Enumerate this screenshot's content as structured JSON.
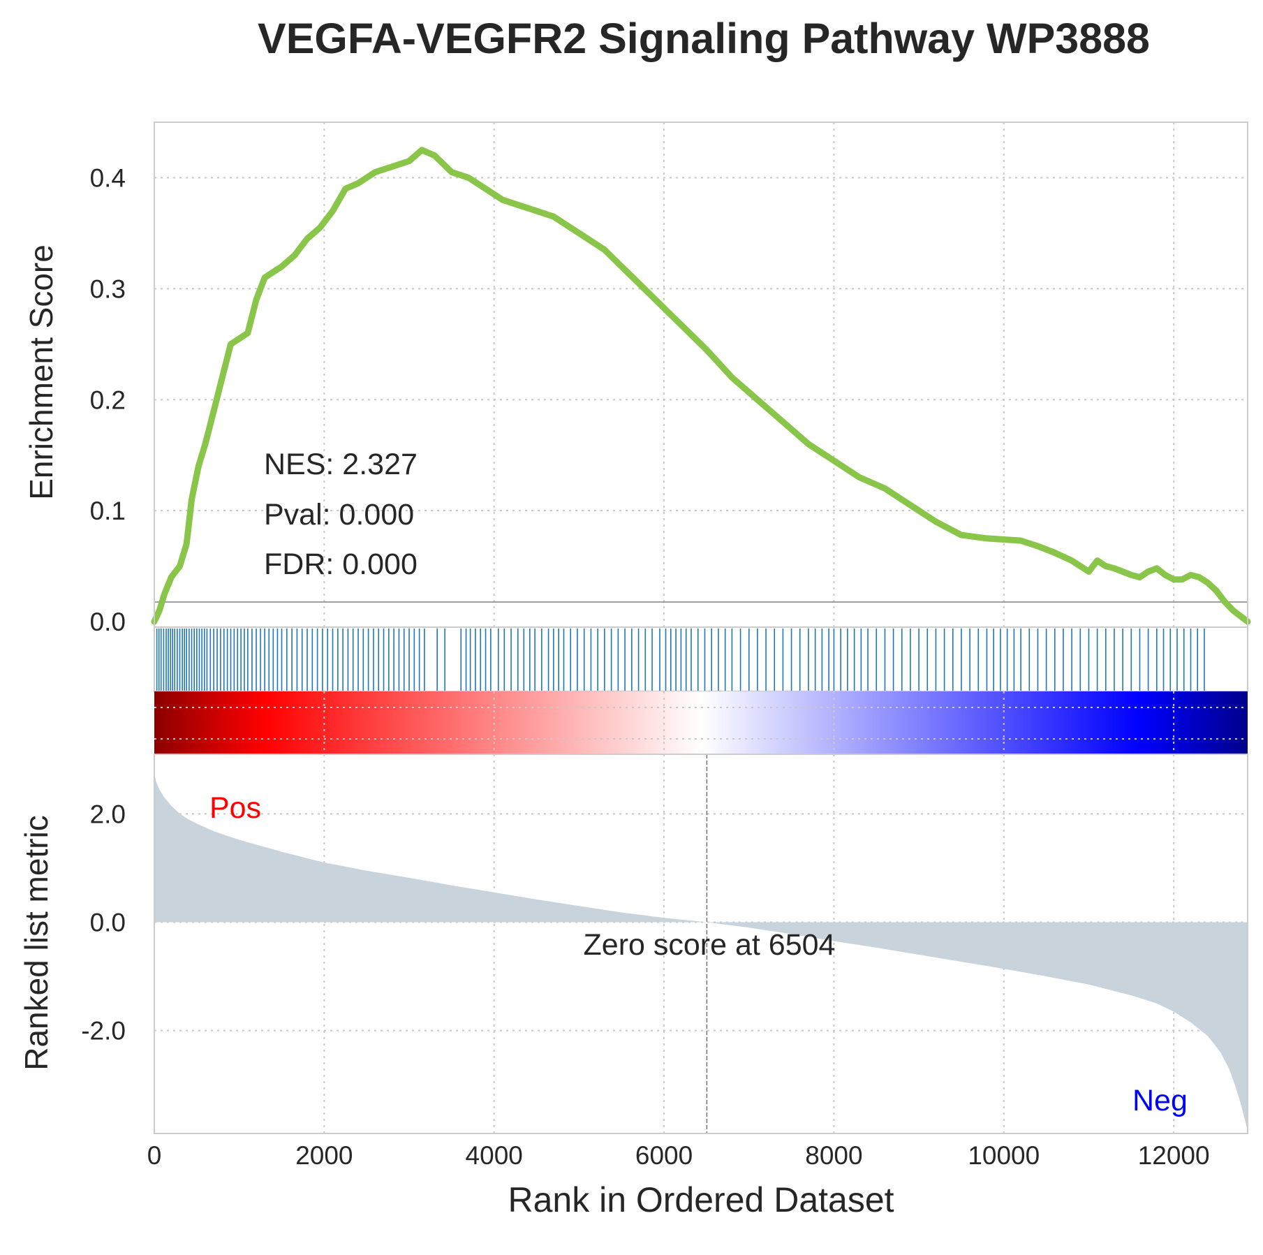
{
  "chart_data": {
    "type": "line",
    "title": "VEGFA-VEGFR2 Signaling Pathway WP3888",
    "xlabel": "Rank in Ordered Dataset",
    "xlim": [
      0,
      12870
    ],
    "x_ticks": [
      0,
      2000,
      4000,
      6000,
      8000,
      10000,
      12000
    ],
    "x_tick_labels": [
      "0",
      "2000",
      "4000",
      "6000",
      "8000",
      "10000",
      "12000"
    ],
    "grid": true,
    "es_panel": {
      "ylabel": "Enrichment Score",
      "ylim": [
        -0.005,
        0.45
      ],
      "y_ticks": [
        0.0,
        0.1,
        0.2,
        0.3,
        0.4
      ],
      "y_tick_labels": [
        "0.0",
        "0.1",
        "0.2",
        "0.3",
        "0.4"
      ],
      "line_color": "#88c548",
      "series": [
        {
          "x": [
            0,
            60,
            120,
            200,
            300,
            380,
            440,
            520,
            600,
            700,
            800,
            900,
            1000,
            1100,
            1200,
            1300,
            1400,
            1500,
            1650,
            1800,
            1950,
            2100,
            2250,
            2400,
            2600,
            2800,
            3000,
            3150,
            3300,
            3500,
            3700,
            3900,
            4100,
            4300,
            4500,
            4700,
            4900,
            5100,
            5300,
            5500,
            5700,
            5900,
            6100,
            6300,
            6500,
            6800,
            7100,
            7400,
            7700,
            8000,
            8300,
            8600,
            8900,
            9200,
            9500,
            9800,
            10000,
            10200,
            10400,
            10600,
            10800,
            11000,
            11100,
            11200,
            11300,
            11400,
            11500,
            11600,
            11700,
            11800,
            11900,
            12000,
            12100,
            12200,
            12300,
            12400,
            12500,
            12600,
            12700,
            12870
          ],
          "es": [
            0.0,
            0.01,
            0.025,
            0.04,
            0.05,
            0.07,
            0.11,
            0.14,
            0.16,
            0.19,
            0.22,
            0.25,
            0.255,
            0.26,
            0.29,
            0.31,
            0.315,
            0.32,
            0.33,
            0.345,
            0.355,
            0.37,
            0.39,
            0.395,
            0.405,
            0.41,
            0.415,
            0.425,
            0.42,
            0.405,
            0.4,
            0.39,
            0.38,
            0.375,
            0.37,
            0.365,
            0.355,
            0.345,
            0.335,
            0.32,
            0.305,
            0.29,
            0.275,
            0.26,
            0.245,
            0.22,
            0.2,
            0.18,
            0.16,
            0.145,
            0.13,
            0.12,
            0.105,
            0.09,
            0.078,
            0.075,
            0.074,
            0.073,
            0.068,
            0.062,
            0.055,
            0.045,
            0.055,
            0.05,
            0.048,
            0.045,
            0.042,
            0.04,
            0.045,
            0.048,
            0.042,
            0.038,
            0.038,
            0.042,
            0.04,
            0.035,
            0.028,
            0.018,
            0.01,
            0.0
          ]
        }
      ]
    },
    "hits": [
      30,
      55,
      80,
      110,
      140,
      165,
      190,
      215,
      240,
      270,
      300,
      330,
      355,
      380,
      410,
      440,
      470,
      500,
      530,
      560,
      590,
      620,
      660,
      700,
      740,
      780,
      820,
      860,
      900,
      940,
      980,
      1020,
      1060,
      1100,
      1150,
      1200,
      1250,
      1300,
      1350,
      1400,
      1450,
      1500,
      1560,
      1620,
      1680,
      1740,
      1800,
      1860,
      1920,
      1980,
      2040,
      2100,
      2160,
      2220,
      2280,
      2340,
      2400,
      2460,
      2520,
      2580,
      2640,
      2700,
      2760,
      2820,
      2880,
      2940,
      3000,
      3060,
      3120,
      3180,
      3330,
      3420,
      3610,
      3670,
      3720,
      3780,
      3840,
      3900,
      3960,
      4050,
      4120,
      4200,
      4280,
      4350,
      4420,
      4480,
      4560,
      4640,
      4700,
      4760,
      4820,
      4900,
      4980,
      5060,
      5140,
      5220,
      5300,
      5380,
      5460,
      5540,
      5620,
      5700,
      5780,
      5860,
      5950,
      6020,
      6080,
      6140,
      6200,
      6260,
      6320,
      6400,
      6480,
      6560,
      6640,
      6720,
      6800,
      6900,
      7000,
      7100,
      7200,
      7300,
      7400,
      7500,
      7600,
      7700,
      7780,
      7860,
      7940,
      8000,
      8080,
      8160,
      8240,
      8320,
      8400,
      8500,
      8600,
      8700,
      8800,
      8900,
      9000,
      9100,
      9200,
      9300,
      9400,
      9500,
      9600,
      9700,
      9800,
      9880,
      9960,
      10040,
      10120,
      10200,
      10300,
      10400,
      10500,
      10600,
      10700,
      10800,
      10900,
      11000,
      11100,
      11200,
      11300,
      11400,
      11500,
      11600,
      11700,
      11800,
      11880,
      11960,
      12040,
      12120,
      12200,
      12280,
      12360
    ],
    "hit_color": "#1f77b4",
    "stats": {
      "nes": "NES: 2.327",
      "pval": "Pval: 0.000",
      "fdr": "FDR: 0.000"
    },
    "heatmap_colors": [
      "#8b0000",
      "#ff0000",
      "#ffffff",
      "#0000ff",
      "#00008b"
    ],
    "rank_panel": {
      "ylabel": "Ranked list metric",
      "ylim": [
        -3.9,
        3.1
      ],
      "y_ticks": [
        -2.0,
        0.0,
        2.0
      ],
      "y_tick_labels": [
        "-2.0",
        "0.0",
        "2.0"
      ],
      "fill_color": "#c8d3dc",
      "series": [
        {
          "x": [
            0,
            20,
            60,
            120,
            200,
            300,
            400,
            500,
            700,
            1000,
            1500,
            2000,
            2500,
            3000,
            3500,
            4000,
            4500,
            5000,
            5500,
            6000,
            6504,
            7000,
            7500,
            8000,
            8500,
            9000,
            9500,
            10000,
            10500,
            11000,
            11500,
            11800,
            12000,
            12200,
            12400,
            12550,
            12650,
            12720,
            12780,
            12830,
            12870
          ],
          "metric": [
            2.75,
            2.6,
            2.45,
            2.3,
            2.15,
            2.0,
            1.9,
            1.82,
            1.68,
            1.52,
            1.3,
            1.1,
            0.95,
            0.82,
            0.68,
            0.55,
            0.42,
            0.3,
            0.18,
            0.08,
            0.0,
            -0.1,
            -0.22,
            -0.35,
            -0.47,
            -0.6,
            -0.73,
            -0.86,
            -1.0,
            -1.15,
            -1.35,
            -1.5,
            -1.65,
            -1.85,
            -2.1,
            -2.4,
            -2.7,
            -3.0,
            -3.3,
            -3.6,
            -3.85
          ]
        }
      ],
      "pos_label": "Pos",
      "neg_label": "Neg",
      "pos_color": "#ff0000",
      "neg_color": "#0000ff",
      "zero_rank": 6504,
      "zero_label": "Zero score at 6504"
    }
  }
}
